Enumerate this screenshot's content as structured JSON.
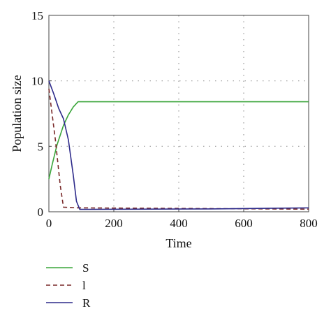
{
  "chart_data": {
    "type": "line",
    "xlabel": "Time",
    "ylabel": "Population size",
    "xlim": [
      0,
      800
    ],
    "ylim": [
      0,
      15
    ],
    "xticks": [
      0,
      200,
      400,
      600,
      800
    ],
    "yticks": [
      0,
      5,
      10,
      15
    ],
    "grid": "dotted",
    "legend_position": "bottom-left",
    "series": [
      {
        "name": "S",
        "color": "#3aa53a",
        "dash": "solid",
        "points": [
          [
            0,
            2.5
          ],
          [
            10,
            3.6
          ],
          [
            25,
            5.1
          ],
          [
            45,
            6.6
          ],
          [
            60,
            7.4
          ],
          [
            75,
            8.0
          ],
          [
            90,
            8.4
          ],
          [
            800,
            8.4
          ]
        ]
      },
      {
        "name": "l",
        "color": "#7a2a2a",
        "dash": "dashed",
        "points": [
          [
            0,
            9.4
          ],
          [
            20,
            5.5
          ],
          [
            35,
            2.0
          ],
          [
            45,
            0.35
          ],
          [
            90,
            0.3
          ],
          [
            800,
            0.2
          ]
        ]
      },
      {
        "name": "R",
        "color": "#2d2a8a",
        "dash": "solid",
        "points": [
          [
            0,
            10.0
          ],
          [
            15,
            9.0
          ],
          [
            30,
            7.9
          ],
          [
            45,
            7.1
          ],
          [
            60,
            5.5
          ],
          [
            75,
            2.8
          ],
          [
            85,
            0.8
          ],
          [
            95,
            0.18
          ],
          [
            500,
            0.22
          ],
          [
            800,
            0.3
          ]
        ]
      }
    ]
  }
}
